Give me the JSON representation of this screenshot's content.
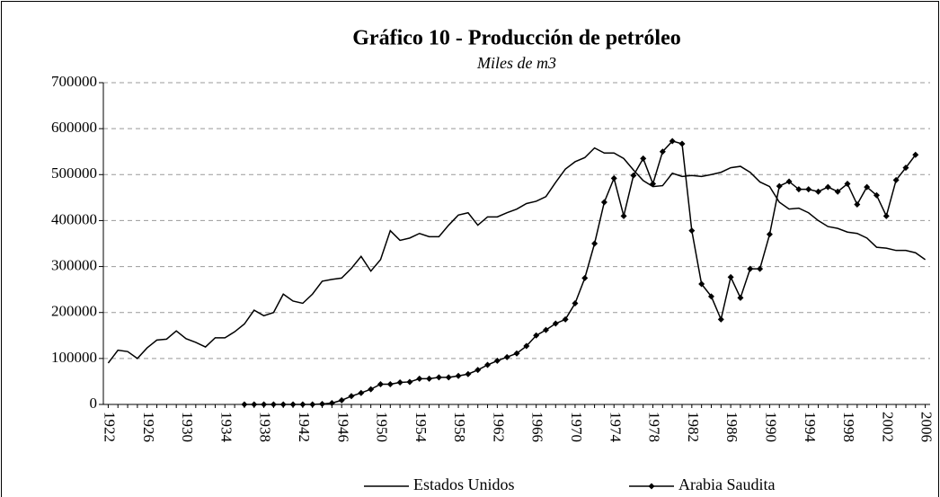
{
  "chart_data": {
    "type": "line",
    "title": "Gráfico 10 - Producción de petróleo",
    "subtitle": "Miles de m3",
    "x": [
      1922,
      1923,
      1924,
      1925,
      1926,
      1927,
      1928,
      1929,
      1930,
      1931,
      1932,
      1933,
      1934,
      1935,
      1936,
      1937,
      1938,
      1939,
      1940,
      1941,
      1942,
      1943,
      1944,
      1945,
      1946,
      1947,
      1948,
      1949,
      1950,
      1951,
      1952,
      1953,
      1954,
      1955,
      1956,
      1957,
      1958,
      1959,
      1960,
      1961,
      1962,
      1963,
      1964,
      1965,
      1966,
      1967,
      1968,
      1969,
      1970,
      1971,
      1972,
      1973,
      1974,
      1975,
      1976,
      1977,
      1978,
      1979,
      1980,
      1981,
      1982,
      1983,
      1984,
      1985,
      1986,
      1987,
      1988,
      1989,
      1990,
      1991,
      1992,
      1993,
      1994,
      1995,
      1996,
      1997,
      1998,
      1999,
      2000,
      2001,
      2002,
      2003,
      2004,
      2005,
      2006
    ],
    "series": [
      {
        "name": "Estados Unidos",
        "color": "#000000",
        "marker": false,
        "values": [
          90000,
          118000,
          115000,
          100000,
          123000,
          140000,
          142000,
          160000,
          143000,
          135000,
          125000,
          145000,
          145000,
          158000,
          175000,
          205000,
          193000,
          200000,
          240000,
          225000,
          220000,
          240000,
          268000,
          272000,
          275000,
          296000,
          322000,
          290000,
          315000,
          378000,
          357000,
          362000,
          372000,
          365000,
          365000,
          390000,
          412000,
          417000,
          390000,
          408000,
          408000,
          417000,
          425000,
          437000,
          442000,
          452000,
          483000,
          512000,
          528000,
          537000,
          558000,
          547000,
          547000,
          535000,
          510000,
          487000,
          474000,
          476000,
          503000,
          496000,
          498000,
          496000,
          500000,
          505000,
          515000,
          518000,
          505000,
          484000,
          474000,
          440000,
          425000,
          427000,
          417000,
          400000,
          387000,
          383000,
          375000,
          372000,
          362000,
          342000,
          340000,
          335000,
          335000,
          330000,
          315000
        ]
      },
      {
        "name": "Arabia Saudita",
        "color": "#000000",
        "marker": true,
        "values": [
          null,
          null,
          null,
          null,
          null,
          null,
          null,
          null,
          null,
          null,
          null,
          null,
          null,
          null,
          0,
          0,
          0,
          0,
          0,
          0,
          0,
          0,
          1000,
          3000,
          9000,
          18000,
          25000,
          33000,
          44000,
          44000,
          48000,
          49000,
          56000,
          56000,
          59000,
          59000,
          62000,
          66000,
          75000,
          86000,
          95000,
          103000,
          111000,
          127000,
          150000,
          162000,
          176000,
          185000,
          220000,
          275000,
          350000,
          440000,
          492000,
          410000,
          498000,
          535000,
          480000,
          550000,
          573000,
          567000,
          378000,
          262000,
          235000,
          185000,
          277000,
          232000,
          295000,
          295000,
          370000,
          475000,
          485000,
          468000,
          468000,
          463000,
          473000,
          463000,
          480000,
          435000,
          473000,
          455000,
          410000,
          488000,
          515000,
          543000,
          null
        ]
      }
    ],
    "xlim": [
      1921.5,
      2006.5
    ],
    "xticks": [
      1922,
      1926,
      1930,
      1934,
      1938,
      1942,
      1946,
      1950,
      1954,
      1958,
      1962,
      1966,
      1970,
      1974,
      1978,
      1982,
      1986,
      1990,
      1994,
      1998,
      2002,
      2006
    ],
    "ylim": [
      0,
      700000
    ],
    "yticks": [
      0,
      100000,
      200000,
      300000,
      400000,
      500000,
      600000,
      700000
    ],
    "grid": true,
    "legend": "bottom"
  }
}
